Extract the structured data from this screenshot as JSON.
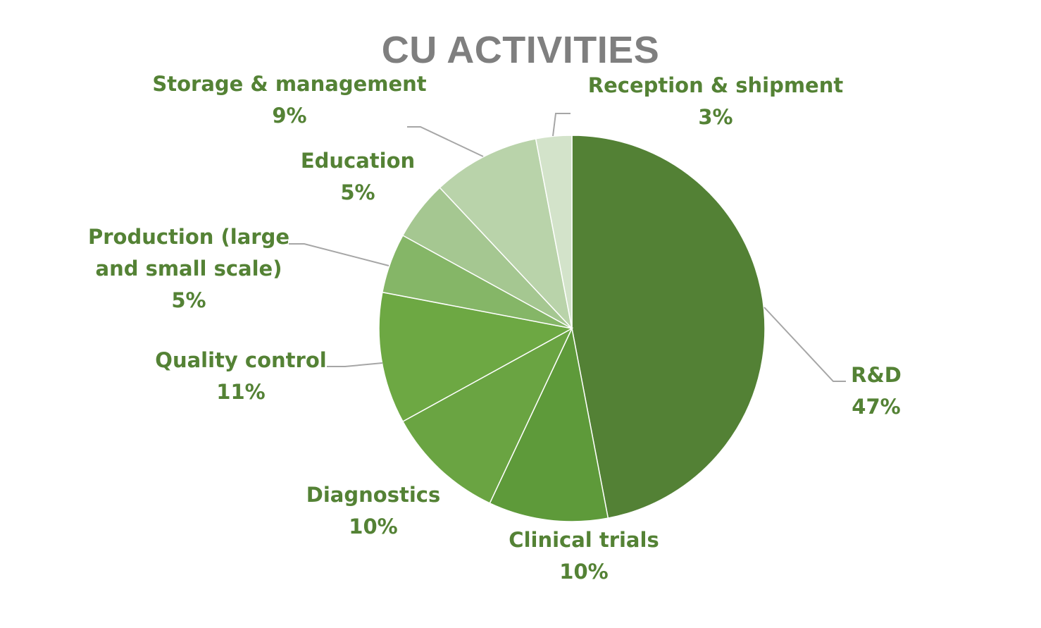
{
  "chart_data": {
    "type": "pie",
    "title": "CU ACTIVITIES",
    "categories": [
      "R&D",
      "Clinical trials",
      "Diagnostics",
      "Quality control",
      "Production (large and small scale)",
      "Education",
      "Storage & management",
      "Reception & shipment"
    ],
    "values": [
      47,
      10,
      10,
      11,
      5,
      5,
      9,
      3
    ],
    "value_labels": [
      "47%",
      "10%",
      "10%",
      "11%",
      "5%",
      "5%",
      "9%",
      "3%"
    ],
    "label_lines": [
      [
        "R&D"
      ],
      [
        "Clinical trials"
      ],
      [
        "Diagnostics"
      ],
      [
        "Quality control"
      ],
      [
        "Production (large",
        "and small scale)"
      ],
      [
        "Education"
      ],
      [
        "Storage & management"
      ],
      [
        "Reception & shipment"
      ]
    ],
    "colors": [
      "#538135",
      "#5e9a3a",
      "#6aa442",
      "#6da843",
      "#85b667",
      "#a5c791",
      "#b9d3aa",
      "#d3e3ca"
    ],
    "start_angle_deg": 0,
    "direction": "clockwise",
    "legend": "none"
  }
}
